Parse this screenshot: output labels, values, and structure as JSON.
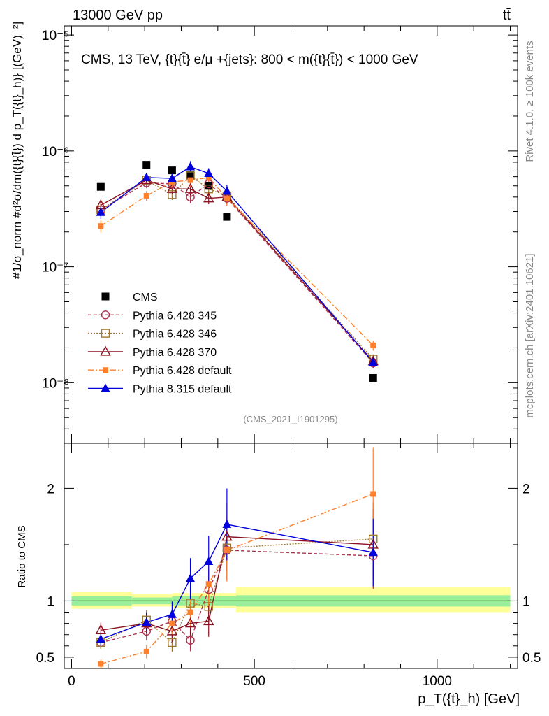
{
  "header": {
    "beam": "13000 GeV pp",
    "process": "tt̄"
  },
  "side_labels": {
    "rivet": "Rivet 4.1.0, ≥ 100k events",
    "mcplots": "mcplots.cern.ch [arXiv:2401.10621]"
  },
  "chart_data": [
    {
      "type": "line",
      "title": "CMS, 13 TeV, {t}{t̄} e/μ +{jets}: 800 < m({t}{t̄}) < 1000 GeV",
      "ylabel": "#1/σ_norm #d²σ/dm({t}{t̄}) d p_T({t}_h)} [(GeV)⁻²]",
      "yscale": "log",
      "ylim": [
        3e-09,
        1.2e-05
      ],
      "xlim": [
        -20,
        1220
      ],
      "y_ticks": [
        "10⁻⁸",
        "10⁻⁷",
        "10⁻⁶",
        "10⁻⁵"
      ],
      "analysis_id": "(CMS_2021_I1901295)",
      "x": [
        80,
        205,
        275,
        325,
        375,
        425,
        825
      ],
      "series": [
        {
          "name": "CMS",
          "color": "#000000",
          "marker": "square-filled",
          "dash": "none",
          "values": [
            4.9e-07,
            7.6e-07,
            6.8e-07,
            6.2e-07,
            5e-07,
            2.7e-07,
            1.1e-08
          ]
        },
        {
          "name": "Pythia 6.428 345",
          "color": "#b03050",
          "marker": "circle-open",
          "dash": "5,3",
          "values": [
            3.1e-07,
            5.3e-07,
            5.2e-07,
            4e-07,
            5.2e-07,
            3.9e-07,
            1.48e-08
          ]
        },
        {
          "name": "Pythia 6.428 346",
          "color": "#a07830",
          "marker": "square-open",
          "dash": "2,2",
          "values": [
            3.1e-07,
            5.6e-07,
            4.2e-07,
            6.1e-07,
            4.7e-07,
            4.1e-07,
            1.6e-08
          ]
        },
        {
          "name": "Pythia 6.428 370",
          "color": "#8b1020",
          "marker": "triangle-open",
          "dash": "none",
          "values": [
            3.4e-07,
            5.6e-07,
            4.7e-07,
            4.7e-07,
            3.9e-07,
            4e-07,
            1.53e-08
          ]
        },
        {
          "name": "Pythia 6.428 default",
          "color": "#ff7f2a",
          "marker": "square-filled-small",
          "dash": "8,3,2,3",
          "values": [
            2.25e-07,
            4.1e-07,
            5.4e-07,
            5.6e-07,
            5.9e-07,
            3.9e-07,
            2.1e-08
          ]
        },
        {
          "name": "Pythia 8.315 default",
          "color": "#0000dd",
          "marker": "triangle-filled",
          "dash": "none",
          "values": [
            2.95e-07,
            5.9e-07,
            5.8e-07,
            7.3e-07,
            6.4e-07,
            4.5e-07,
            1.5e-08
          ]
        }
      ]
    },
    {
      "type": "line",
      "title": "",
      "ylabel": "Ratio to CMS",
      "xlabel": "p_T({t}_h) [GeV]",
      "ylim": [
        0.4,
        2.4
      ],
      "xlim": [
        -20,
        1220
      ],
      "y_ticks": [
        "0.5",
        "1",
        "2"
      ],
      "x_ticks": [
        "0",
        "500",
        "1000"
      ],
      "band_bins": [
        0,
        165,
        275,
        450,
        1200
      ],
      "band_inner": [
        [
          0.96,
          1.04
        ],
        [
          0.97,
          1.03
        ],
        [
          0.96,
          1.04
        ],
        [
          0.95,
          1.05
        ]
      ],
      "band_outer": [
        [
          0.93,
          1.08
        ],
        [
          0.95,
          1.06
        ],
        [
          0.94,
          1.07
        ],
        [
          0.9,
          1.12
        ]
      ],
      "x": [
        80,
        205,
        275,
        325,
        375,
        425,
        825
      ],
      "series": [
        {
          "name": "Pythia 6.428 345",
          "values": [
            0.63,
            0.73,
            0.82,
            0.65,
            1.1,
            1.45,
            1.4
          ]
        },
        {
          "name": "Pythia 6.428 346",
          "values": [
            0.63,
            0.83,
            0.63,
            0.98,
            0.95,
            1.47,
            1.55
          ]
        },
        {
          "name": "Pythia 6.428 370",
          "values": [
            0.74,
            0.8,
            0.73,
            0.8,
            0.82,
            1.57,
            1.5
          ]
        },
        {
          "name": "Pythia 6.428 default",
          "values": [
            0.44,
            0.55,
            0.8,
            0.9,
            1.15,
            1.45,
            1.95
          ]
        },
        {
          "name": "Pythia 8.315 default",
          "values": [
            0.66,
            0.81,
            0.88,
            1.2,
            1.35,
            1.68,
            1.43
          ]
        }
      ]
    }
  ]
}
